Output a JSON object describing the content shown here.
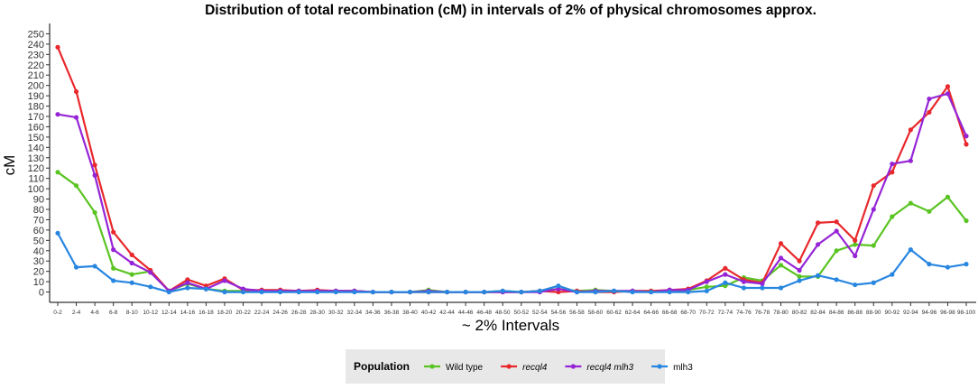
{
  "chart_data": {
    "type": "line",
    "title": "Distribution of total recombination (cM) in intervals of 2% of physical chromosomes approx.",
    "xlabel": "~ 2% Intervals",
    "ylabel": "cM",
    "ylim": [
      -10,
      260
    ],
    "y_ticks": [
      0,
      10,
      20,
      30,
      40,
      50,
      60,
      70,
      80,
      90,
      100,
      110,
      120,
      130,
      140,
      150,
      160,
      170,
      180,
      190,
      200,
      210,
      220,
      230,
      240,
      250
    ],
    "grid": false,
    "legend": {
      "title": "Population",
      "position": "bottom"
    },
    "categories": [
      "0-2",
      "2-4",
      "4-6",
      "6-8",
      "8-10",
      "10-12",
      "12-14",
      "14-16",
      "16-18",
      "18-20",
      "20-22",
      "22-24",
      "24-26",
      "26-28",
      "28-30",
      "30-32",
      "32-34",
      "34-36",
      "36-38",
      "38-40",
      "40-42",
      "42-44",
      "44-46",
      "46-48",
      "48-50",
      "50-52",
      "52-54",
      "54-56",
      "56-58",
      "58-60",
      "60-62",
      "62-64",
      "64-66",
      "66-68",
      "68-70",
      "70-72",
      "72-74",
      "74-76",
      "76-78",
      "78-80",
      "80-82",
      "82-84",
      "84-86",
      "86-88",
      "88-90",
      "90-92",
      "92-94",
      "94-96",
      "96-98",
      "98-100"
    ],
    "series": [
      {
        "name": "Wild type",
        "italic": false,
        "color": "#5ac422",
        "values": [
          116,
          103,
          77,
          23,
          17,
          20,
          1,
          8,
          3,
          1,
          1,
          1,
          1,
          1,
          1,
          1,
          1,
          0,
          0,
          0,
          2,
          0,
          0,
          0,
          1,
          0,
          1,
          3,
          1,
          2,
          1,
          1,
          1,
          1,
          2,
          5,
          6,
          14,
          11,
          26,
          15,
          15,
          40,
          46,
          45,
          73,
          86,
          78,
          92,
          69
        ]
      },
      {
        "name": "recql4",
        "italic": true,
        "color": "#e8282c",
        "values": [
          237,
          194,
          123,
          58,
          36,
          21,
          1,
          12,
          6,
          13,
          2,
          2,
          2,
          1,
          2,
          1,
          1,
          0,
          0,
          0,
          0,
          0,
          0,
          0,
          0,
          0,
          1,
          0,
          1,
          0,
          0,
          1,
          1,
          2,
          3,
          11,
          23,
          12,
          9,
          47,
          30,
          67,
          68,
          50,
          103,
          116,
          157,
          174,
          199,
          143
        ]
      },
      {
        "name": "recql4 mlh3",
        "italic": true,
        "color": "#9524d6",
        "values": [
          172,
          169,
          113,
          41,
          28,
          19,
          1,
          9,
          3,
          11,
          3,
          1,
          1,
          1,
          1,
          1,
          1,
          0,
          0,
          0,
          1,
          0,
          0,
          0,
          0,
          0,
          0,
          3,
          0,
          1,
          1,
          1,
          0,
          2,
          2,
          10,
          17,
          10,
          8,
          33,
          21,
          46,
          59,
          35,
          80,
          124,
          127,
          187,
          192,
          151
        ]
      },
      {
        "name": "mlh3",
        "italic": false,
        "color": "#2786e0",
        "values": [
          57,
          24,
          25,
          11,
          9,
          5,
          0,
          4,
          3,
          0,
          0,
          0,
          0,
          0,
          0,
          0,
          0,
          0,
          0,
          0,
          0,
          0,
          0,
          0,
          1,
          0,
          1,
          6,
          0,
          0,
          1,
          0,
          0,
          0,
          0,
          1,
          9,
          4,
          4,
          4,
          11,
          16,
          12,
          7,
          9,
          17,
          41,
          27,
          24,
          27
        ]
      }
    ]
  }
}
